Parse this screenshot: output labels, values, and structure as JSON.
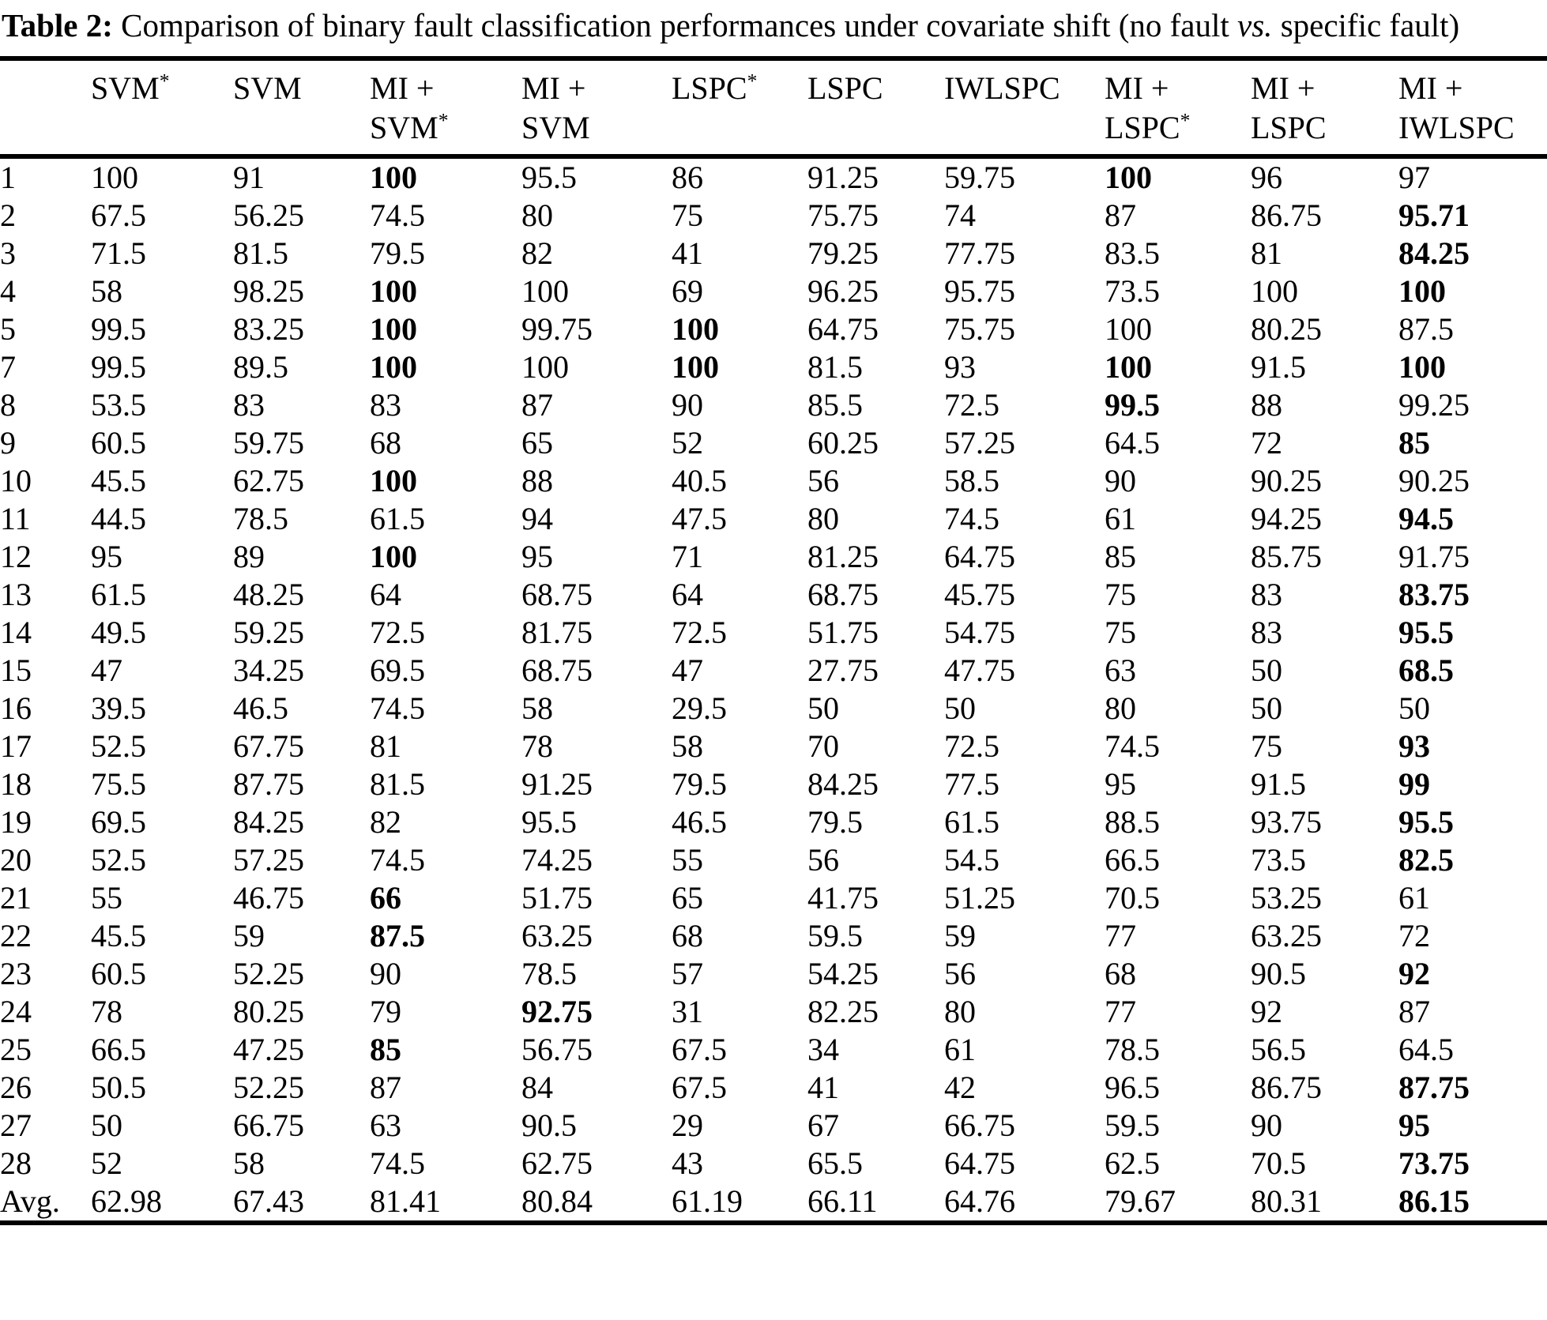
{
  "caption": {
    "label": "Table 2:",
    "before_vs": " Comparison of binary fault classification performances under covariate shift (no fault ",
    "vs": "vs.",
    "after_vs": " specific fault)"
  },
  "table": {
    "columns": [
      {
        "line1": "SVM*",
        "line2": ""
      },
      {
        "line1": "SVM",
        "line2": ""
      },
      {
        "line1": "MI +",
        "line2": "SVM*"
      },
      {
        "line1": "MI +",
        "line2": "SVM"
      },
      {
        "line1": "LSPC*",
        "line2": ""
      },
      {
        "line1": "LSPC",
        "line2": ""
      },
      {
        "line1": "IWLSPC",
        "line2": ""
      },
      {
        "line1": "MI +",
        "line2": "LSPC*"
      },
      {
        "line1": "MI +",
        "line2": "LSPC"
      },
      {
        "line1": "MI +",
        "line2": "IWLSPC"
      }
    ],
    "rows": [
      {
        "label": "1",
        "values": [
          "100",
          "91",
          "100",
          "95.5",
          "86",
          "91.25",
          "59.75",
          "100",
          "96",
          "97"
        ],
        "bold": [
          2,
          7
        ]
      },
      {
        "label": "2",
        "values": [
          "67.5",
          "56.25",
          "74.5",
          "80",
          "75",
          "75.75",
          "74",
          "87",
          "86.75",
          "95.71"
        ],
        "bold": [
          9
        ]
      },
      {
        "label": "3",
        "values": [
          "71.5",
          "81.5",
          "79.5",
          "82",
          "41",
          "79.25",
          "77.75",
          "83.5",
          "81",
          "84.25"
        ],
        "bold": [
          9
        ]
      },
      {
        "label": "4",
        "values": [
          "58",
          "98.25",
          "100",
          "100",
          "69",
          "96.25",
          "95.75",
          "73.5",
          "100",
          "100"
        ],
        "bold": [
          2,
          9
        ]
      },
      {
        "label": "5",
        "values": [
          "99.5",
          "83.25",
          "100",
          "99.75",
          "100",
          "64.75",
          "75.75",
          "100",
          "80.25",
          "87.5"
        ],
        "bold": [
          2,
          4
        ]
      },
      {
        "label": "7",
        "values": [
          "99.5",
          "89.5",
          "100",
          "100",
          "100",
          "81.5",
          "93",
          "100",
          "91.5",
          "100"
        ],
        "bold": [
          2,
          4,
          7,
          9
        ]
      },
      {
        "label": "8",
        "values": [
          "53.5",
          "83",
          "83",
          "87",
          "90",
          "85.5",
          "72.5",
          "99.5",
          "88",
          "99.25"
        ],
        "bold": [
          7
        ]
      },
      {
        "label": "9",
        "values": [
          "60.5",
          "59.75",
          "68",
          "65",
          "52",
          "60.25",
          "57.25",
          "64.5",
          "72",
          "85"
        ],
        "bold": [
          9
        ]
      },
      {
        "label": "10",
        "values": [
          "45.5",
          "62.75",
          "100",
          "88",
          "40.5",
          "56",
          "58.5",
          "90",
          "90.25",
          "90.25"
        ],
        "bold": [
          2
        ]
      },
      {
        "label": "11",
        "values": [
          "44.5",
          "78.5",
          "61.5",
          "94",
          "47.5",
          "80",
          "74.5",
          "61",
          "94.25",
          "94.5"
        ],
        "bold": [
          9
        ]
      },
      {
        "label": "12",
        "values": [
          "95",
          "89",
          "100",
          "95",
          "71",
          "81.25",
          "64.75",
          "85",
          "85.75",
          "91.75"
        ],
        "bold": [
          2
        ]
      },
      {
        "label": "13",
        "values": [
          "61.5",
          "48.25",
          "64",
          "68.75",
          "64",
          "68.75",
          "45.75",
          "75",
          "83",
          "83.75"
        ],
        "bold": [
          9
        ]
      },
      {
        "label": "14",
        "values": [
          "49.5",
          "59.25",
          "72.5",
          "81.75",
          "72.5",
          "51.75",
          "54.75",
          "75",
          "83",
          "95.5"
        ],
        "bold": [
          9
        ]
      },
      {
        "label": "15",
        "values": [
          "47",
          "34.25",
          "69.5",
          "68.75",
          "47",
          "27.75",
          "47.75",
          "63",
          "50",
          "68.5"
        ],
        "bold": [
          9
        ]
      },
      {
        "label": "16",
        "values": [
          "39.5",
          "46.5",
          "74.5",
          "58",
          "29.5",
          "50",
          "50",
          "80",
          "50",
          "50"
        ],
        "bold": []
      },
      {
        "label": "17",
        "values": [
          "52.5",
          "67.75",
          "81",
          "78",
          "58",
          "70",
          "72.5",
          "74.5",
          "75",
          "93"
        ],
        "bold": [
          9
        ]
      },
      {
        "label": "18",
        "values": [
          "75.5",
          "87.75",
          "81.5",
          "91.25",
          "79.5",
          "84.25",
          "77.5",
          "95",
          "91.5",
          "99"
        ],
        "bold": [
          9
        ]
      },
      {
        "label": "19",
        "values": [
          "69.5",
          "84.25",
          "82",
          "95.5",
          "46.5",
          "79.5",
          "61.5",
          "88.5",
          "93.75",
          "95.5"
        ],
        "bold": [
          9
        ]
      },
      {
        "label": "20",
        "values": [
          "52.5",
          "57.25",
          "74.5",
          "74.25",
          "55",
          "56",
          "54.5",
          "66.5",
          "73.5",
          "82.5"
        ],
        "bold": [
          9
        ]
      },
      {
        "label": "21",
        "values": [
          "55",
          "46.75",
          "66",
          "51.75",
          "65",
          "41.75",
          "51.25",
          "70.5",
          "53.25",
          "61"
        ],
        "bold": [
          2
        ]
      },
      {
        "label": "22",
        "values": [
          "45.5",
          "59",
          "87.5",
          "63.25",
          "68",
          "59.5",
          "59",
          "77",
          "63.25",
          "72"
        ],
        "bold": [
          2
        ]
      },
      {
        "label": "23",
        "values": [
          "60.5",
          "52.25",
          "90",
          "78.5",
          "57",
          "54.25",
          "56",
          "68",
          "90.5",
          "92"
        ],
        "bold": [
          9
        ]
      },
      {
        "label": "24",
        "values": [
          "78",
          "80.25",
          "79",
          "92.75",
          "31",
          "82.25",
          "80",
          "77",
          "92",
          "87"
        ],
        "bold": [
          3
        ]
      },
      {
        "label": "25",
        "values": [
          "66.5",
          "47.25",
          "85",
          "56.75",
          "67.5",
          "34",
          "61",
          "78.5",
          "56.5",
          "64.5"
        ],
        "bold": [
          2
        ]
      },
      {
        "label": "26",
        "values": [
          "50.5",
          "52.25",
          "87",
          "84",
          "67.5",
          "41",
          "42",
          "96.5",
          "86.75",
          "87.75"
        ],
        "bold": [
          9
        ]
      },
      {
        "label": "27",
        "values": [
          "50",
          "66.75",
          "63",
          "90.5",
          "29",
          "67",
          "66.75",
          "59.5",
          "90",
          "95"
        ],
        "bold": [
          9
        ]
      },
      {
        "label": "28",
        "values": [
          "52",
          "58",
          "74.5",
          "62.75",
          "43",
          "65.5",
          "64.75",
          "62.5",
          "70.5",
          "73.75"
        ],
        "bold": [
          9
        ]
      },
      {
        "label": "Avg.",
        "values": [
          "62.98",
          "67.43",
          "81.41",
          "80.84",
          "61.19",
          "66.11",
          "64.76",
          "79.67",
          "80.31",
          "86.15"
        ],
        "bold": [
          9
        ]
      }
    ]
  }
}
